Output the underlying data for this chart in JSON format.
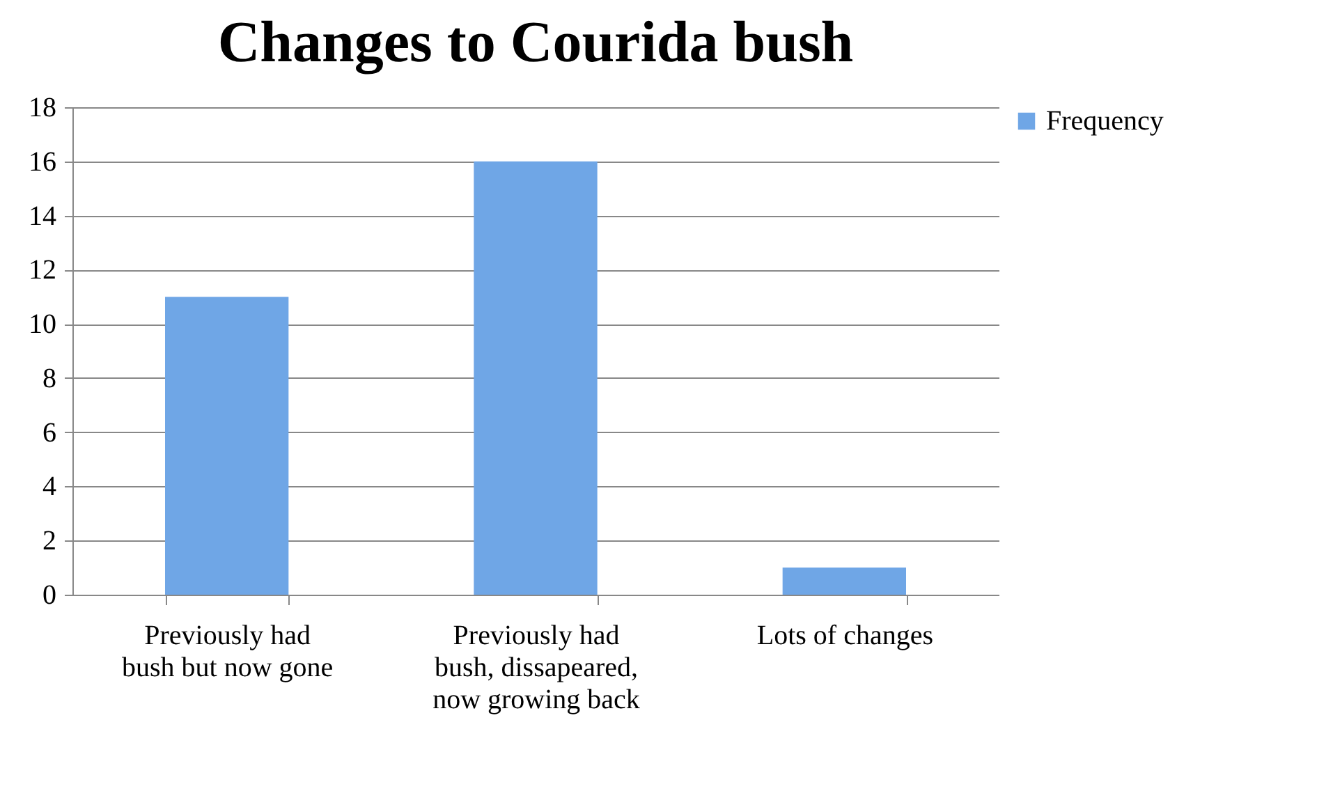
{
  "chart_data": {
    "type": "bar",
    "title": "Changes to Courida bush",
    "categories": [
      "Previously had bush but now gone",
      "Previously had bush, dissapeared, now growing back",
      "Lots of changes"
    ],
    "series": [
      {
        "name": "Frequency",
        "color": "#6fa6e6",
        "values": [
          11,
          16,
          1
        ]
      }
    ],
    "ylim": [
      0,
      18
    ],
    "yticks": [
      0,
      2,
      4,
      6,
      8,
      10,
      12,
      14,
      16,
      18
    ],
    "grid": "y",
    "legend": "right"
  }
}
